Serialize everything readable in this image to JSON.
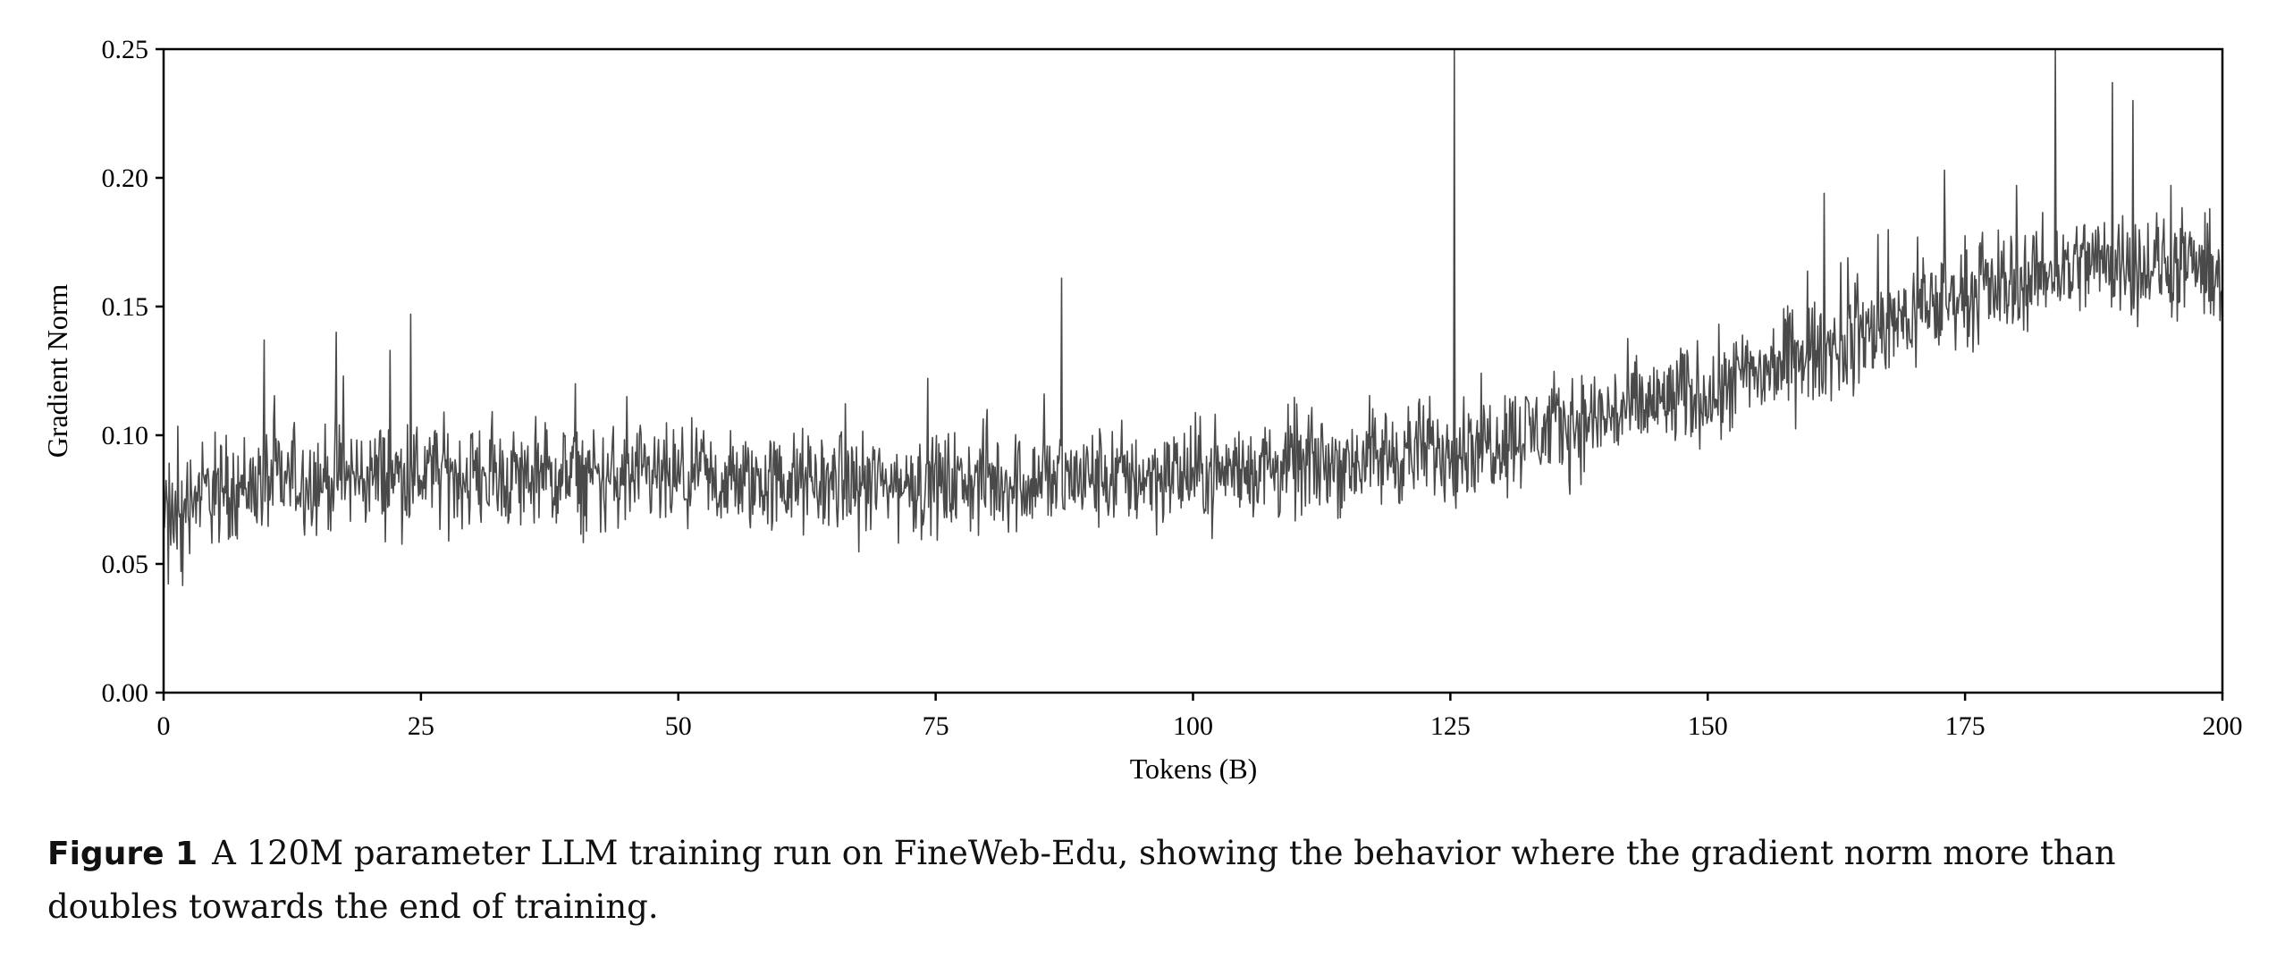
{
  "chart_data": {
    "type": "line",
    "xlabel": "Tokens (B)",
    "ylabel": "Gradient Norm",
    "xlim": [
      0,
      200
    ],
    "ylim": [
      0,
      0.25
    ],
    "x_ticks": [
      "0",
      "25",
      "50",
      "75",
      "100",
      "125",
      "150",
      "175",
      "200"
    ],
    "y_ticks": [
      "0.00",
      "0.05",
      "0.10",
      "0.15",
      "0.20",
      "0.25"
    ],
    "grid": false,
    "line_color": "#4a4a4a",
    "trend": {
      "x": [
        0,
        10,
        25,
        50,
        75,
        100,
        115,
        125,
        137.5,
        150,
        162.5,
        175,
        187.5,
        200
      ],
      "y": [
        0.075,
        0.082,
        0.085,
        0.082,
        0.081,
        0.085,
        0.09,
        0.095,
        0.105,
        0.117,
        0.135,
        0.155,
        0.168,
        0.163
      ]
    },
    "noise_amplitude": 0.009,
    "spikes": [
      {
        "x": 9.8,
        "y": 0.137
      },
      {
        "x": 16.8,
        "y": 0.14
      },
      {
        "x": 17.5,
        "y": 0.123
      },
      {
        "x": 22,
        "y": 0.133
      },
      {
        "x": 24,
        "y": 0.147
      },
      {
        "x": 40,
        "y": 0.12
      },
      {
        "x": 45,
        "y": 0.115
      },
      {
        "x": 80,
        "y": 0.11
      },
      {
        "x": 85.5,
        "y": 0.116
      },
      {
        "x": 87.2,
        "y": 0.161
      },
      {
        "x": 125.4,
        "y": 0.25
      },
      {
        "x": 161.3,
        "y": 0.194
      },
      {
        "x": 166.5,
        "y": 0.178
      },
      {
        "x": 173,
        "y": 0.203
      },
      {
        "x": 180,
        "y": 0.197
      },
      {
        "x": 183.8,
        "y": 0.25
      },
      {
        "x": 189.3,
        "y": 0.237
      },
      {
        "x": 191.3,
        "y": 0.23
      },
      {
        "x": 195,
        "y": 0.197
      }
    ]
  },
  "caption": {
    "label": "Figure 1",
    "text": "A 120M parameter LLM training run on FineWeb-Edu, showing the behavior where the gradient norm more than doubles towards the end of training."
  }
}
